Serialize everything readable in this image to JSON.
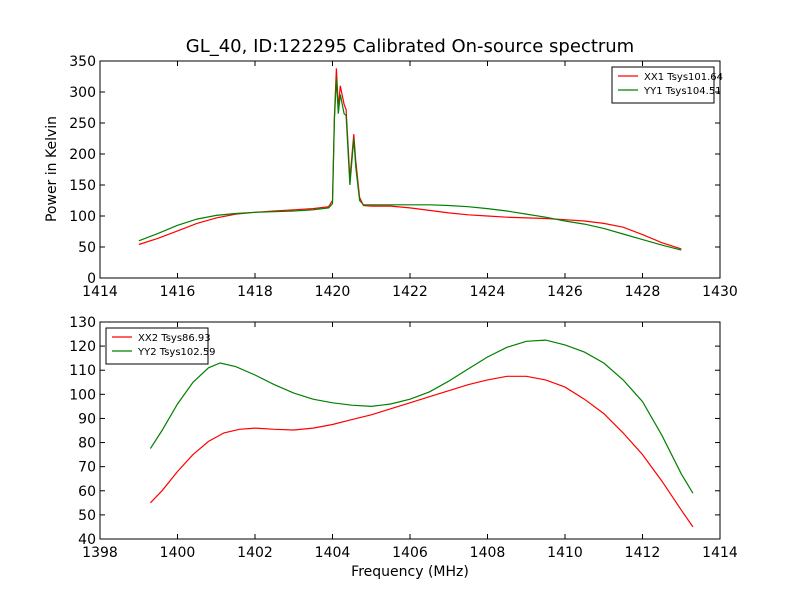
{
  "chart_data": [
    {
      "type": "line",
      "title": "GL_40, ID:122295 Calibrated On-source spectrum",
      "xlabel": "",
      "ylabel": "Power in Kelvin",
      "xlim": [
        1414,
        1430
      ],
      "ylim": [
        0,
        350
      ],
      "xticks": [
        "1414",
        "1416",
        "1418",
        "1420",
        "1422",
        "1424",
        "1426",
        "1428",
        "1430"
      ],
      "yticks": [
        "0",
        "50",
        "100",
        "150",
        "200",
        "250",
        "300",
        "350"
      ],
      "legend": "top-right",
      "series": [
        {
          "name": "XX1 Tsys101.64",
          "color": "#ff0000",
          "points": [
            [
              1415.0,
              54
            ],
            [
              1415.5,
              64
            ],
            [
              1416.0,
              76
            ],
            [
              1416.5,
              88
            ],
            [
              1417.0,
              97
            ],
            [
              1417.5,
              103
            ],
            [
              1418.0,
              106
            ],
            [
              1418.5,
              108
            ],
            [
              1419.0,
              110
            ],
            [
              1419.5,
              112
            ],
            [
              1419.9,
              115
            ],
            [
              1420.0,
              125
            ],
            [
              1420.05,
              260
            ],
            [
              1420.1,
              338
            ],
            [
              1420.15,
              275
            ],
            [
              1420.2,
              310
            ],
            [
              1420.3,
              280
            ],
            [
              1420.35,
              272
            ],
            [
              1420.45,
              160
            ],
            [
              1420.55,
              232
            ],
            [
              1420.6,
              190
            ],
            [
              1420.7,
              130
            ],
            [
              1420.8,
              117
            ],
            [
              1421.0,
              116
            ],
            [
              1421.5,
              116
            ],
            [
              1422.0,
              113
            ],
            [
              1422.5,
              109
            ],
            [
              1423.0,
              105
            ],
            [
              1423.5,
              102
            ],
            [
              1424.0,
              100
            ],
            [
              1424.5,
              98
            ],
            [
              1425.0,
              97
            ],
            [
              1425.5,
              96
            ],
            [
              1426.0,
              94
            ],
            [
              1426.5,
              92
            ],
            [
              1427.0,
              88
            ],
            [
              1427.5,
              82
            ],
            [
              1428.0,
              70
            ],
            [
              1428.5,
              57
            ],
            [
              1429.0,
              47
            ]
          ]
        },
        {
          "name": "YY1 Tsys104.51",
          "color": "#008000",
          "points": [
            [
              1415.0,
              60
            ],
            [
              1415.5,
              72
            ],
            [
              1416.0,
              85
            ],
            [
              1416.5,
              95
            ],
            [
              1417.0,
              101
            ],
            [
              1417.5,
              104
            ],
            [
              1418.0,
              106
            ],
            [
              1418.5,
              107
            ],
            [
              1419.0,
              108
            ],
            [
              1419.5,
              110
            ],
            [
              1419.9,
              113
            ],
            [
              1420.0,
              120
            ],
            [
              1420.05,
              255
            ],
            [
              1420.1,
              322
            ],
            [
              1420.15,
              265
            ],
            [
              1420.2,
              296
            ],
            [
              1420.3,
              265
            ],
            [
              1420.35,
              262
            ],
            [
              1420.45,
              150
            ],
            [
              1420.55,
              225
            ],
            [
              1420.6,
              180
            ],
            [
              1420.7,
              125
            ],
            [
              1420.8,
              118
            ],
            [
              1421.0,
              118
            ],
            [
              1421.5,
              118
            ],
            [
              1422.0,
              118
            ],
            [
              1422.5,
              118
            ],
            [
              1423.0,
              117
            ],
            [
              1423.5,
              115
            ],
            [
              1424.0,
              112
            ],
            [
              1424.5,
              108
            ],
            [
              1425.0,
              103
            ],
            [
              1425.5,
              98
            ],
            [
              1426.0,
              92
            ],
            [
              1426.5,
              87
            ],
            [
              1427.0,
              80
            ],
            [
              1427.5,
              71
            ],
            [
              1428.0,
              62
            ],
            [
              1428.5,
              53
            ],
            [
              1429.0,
              45
            ]
          ]
        }
      ]
    },
    {
      "type": "line",
      "title": "",
      "xlabel": "Frequency (MHz)",
      "ylabel": "",
      "xlim": [
        1398,
        1414
      ],
      "ylim": [
        40,
        130
      ],
      "xticks": [
        "1398",
        "1400",
        "1402",
        "1404",
        "1406",
        "1408",
        "1410",
        "1412",
        "1414"
      ],
      "yticks": [
        "40",
        "50",
        "60",
        "70",
        "80",
        "90",
        "100",
        "110",
        "120",
        "130"
      ],
      "legend": "top-left",
      "series": [
        {
          "name": "XX2 Tsys86.93",
          "color": "#ff0000",
          "points": [
            [
              1399.3,
              55
            ],
            [
              1399.6,
              60
            ],
            [
              1400.0,
              68
            ],
            [
              1400.4,
              75
            ],
            [
              1400.8,
              80.5
            ],
            [
              1401.2,
              84
            ],
            [
              1401.6,
              85.5
            ],
            [
              1402.0,
              86
            ],
            [
              1402.5,
              85.5
            ],
            [
              1403.0,
              85.2
            ],
            [
              1403.5,
              86
            ],
            [
              1404.0,
              87.5
            ],
            [
              1404.5,
              89.5
            ],
            [
              1405.0,
              91.5
            ],
            [
              1405.5,
              94
            ],
            [
              1406.0,
              96.5
            ],
            [
              1406.5,
              99
            ],
            [
              1407.0,
              101.5
            ],
            [
              1407.5,
              104
            ],
            [
              1408.0,
              106
            ],
            [
              1408.5,
              107.5
            ],
            [
              1409.0,
              107.5
            ],
            [
              1409.5,
              106
            ],
            [
              1410.0,
              103
            ],
            [
              1410.5,
              98
            ],
            [
              1411.0,
              92
            ],
            [
              1411.5,
              84
            ],
            [
              1412.0,
              75
            ],
            [
              1412.5,
              64
            ],
            [
              1413.0,
              52
            ],
            [
              1413.3,
              45
            ]
          ]
        },
        {
          "name": "YY2 Tsys102.59",
          "color": "#008000",
          "points": [
            [
              1399.3,
              77.5
            ],
            [
              1399.6,
              85
            ],
            [
              1400.0,
              96
            ],
            [
              1400.4,
              105
            ],
            [
              1400.8,
              111
            ],
            [
              1401.1,
              113
            ],
            [
              1401.5,
              111.5
            ],
            [
              1402.0,
              108
            ],
            [
              1402.5,
              104
            ],
            [
              1403.0,
              100.5
            ],
            [
              1403.5,
              98
            ],
            [
              1404.0,
              96.5
            ],
            [
              1404.5,
              95.5
            ],
            [
              1405.0,
              95
            ],
            [
              1405.5,
              96
            ],
            [
              1406.0,
              98
            ],
            [
              1406.5,
              101
            ],
            [
              1407.0,
              105.5
            ],
            [
              1407.5,
              110.5
            ],
            [
              1408.0,
              115.5
            ],
            [
              1408.5,
              119.5
            ],
            [
              1409.0,
              122
            ],
            [
              1409.5,
              122.5
            ],
            [
              1410.0,
              120.5
            ],
            [
              1410.5,
              117.5
            ],
            [
              1411.0,
              113
            ],
            [
              1411.5,
              106
            ],
            [
              1412.0,
              97
            ],
            [
              1412.5,
              83
            ],
            [
              1413.0,
              67
            ],
            [
              1413.3,
              59
            ]
          ]
        }
      ]
    }
  ]
}
